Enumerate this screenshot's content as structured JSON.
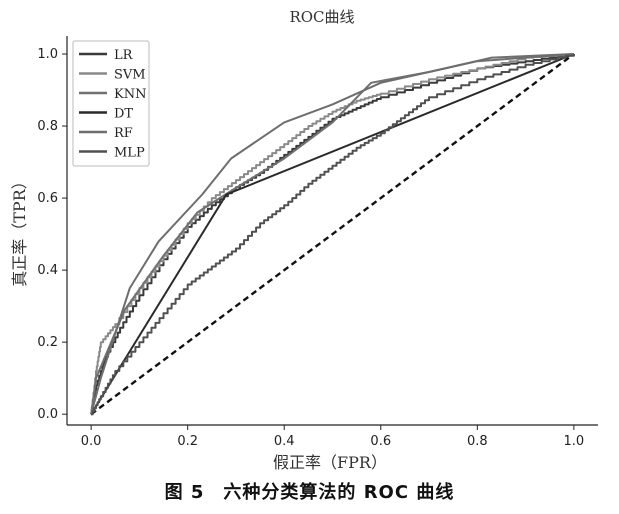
{
  "caption": "图 5　六种分类算法的 ROC 曲线",
  "chart_data": {
    "type": "line",
    "title": "ROC曲线",
    "xlabel": "假正率（FPR）",
    "ylabel": "真正率（TPR）",
    "xlim": [
      -0.05,
      1.05
    ],
    "ylim": [
      -0.03,
      1.05
    ],
    "xticks": [
      "0.0",
      "0.2",
      "0.4",
      "0.6",
      "0.8",
      "1.0"
    ],
    "yticks": [
      "0.0",
      "0.2",
      "0.4",
      "0.6",
      "0.8",
      "1.0"
    ],
    "grid": false,
    "legend_position": "top-left",
    "diagonal": {
      "style": "dashed",
      "points": [
        [
          0,
          0
        ],
        [
          1,
          1
        ]
      ]
    },
    "series": [
      {
        "name": "LR",
        "color": "#3a3a3a",
        "step": true,
        "points": [
          [
            0,
            0
          ],
          [
            0.01,
            0.08
          ],
          [
            0.03,
            0.16
          ],
          [
            0.06,
            0.24
          ],
          [
            0.1,
            0.33
          ],
          [
            0.15,
            0.43
          ],
          [
            0.2,
            0.52
          ],
          [
            0.25,
            0.58
          ],
          [
            0.3,
            0.63
          ],
          [
            0.35,
            0.67
          ],
          [
            0.4,
            0.72
          ],
          [
            0.45,
            0.77
          ],
          [
            0.5,
            0.82
          ],
          [
            0.55,
            0.85
          ],
          [
            0.6,
            0.88
          ],
          [
            0.7,
            0.92
          ],
          [
            0.8,
            0.96
          ],
          [
            0.9,
            0.98
          ],
          [
            1,
            1
          ]
        ]
      },
      {
        "name": "SVM",
        "color": "#8a8a8a",
        "step": true,
        "points": [
          [
            0,
            0
          ],
          [
            0.01,
            0.12
          ],
          [
            0.02,
            0.2
          ],
          [
            0.05,
            0.25
          ],
          [
            0.1,
            0.35
          ],
          [
            0.15,
            0.44
          ],
          [
            0.2,
            0.53
          ],
          [
            0.25,
            0.6
          ],
          [
            0.3,
            0.65
          ],
          [
            0.35,
            0.7
          ],
          [
            0.4,
            0.75
          ],
          [
            0.45,
            0.8
          ],
          [
            0.5,
            0.84
          ],
          [
            0.55,
            0.87
          ],
          [
            0.6,
            0.89
          ],
          [
            0.7,
            0.93
          ],
          [
            0.8,
            0.96
          ],
          [
            0.9,
            0.99
          ],
          [
            1,
            1
          ]
        ]
      },
      {
        "name": "KNN",
        "color": "#707070",
        "step": false,
        "points": [
          [
            0,
            0
          ],
          [
            0.01,
            0.1
          ],
          [
            0.07,
            0.29
          ],
          [
            0.15,
            0.44
          ],
          [
            0.22,
            0.56
          ],
          [
            0.29,
            0.62
          ],
          [
            0.4,
            0.71
          ],
          [
            0.5,
            0.81
          ],
          [
            0.58,
            0.92
          ],
          [
            0.7,
            0.95
          ],
          [
            0.83,
            0.99
          ],
          [
            1,
            1
          ]
        ]
      },
      {
        "name": "DT",
        "color": "#2a2a2a",
        "step": false,
        "points": [
          [
            0,
            0
          ],
          [
            0.28,
            0.61
          ],
          [
            1,
            1
          ]
        ]
      },
      {
        "name": "RF",
        "color": "#6e6e6e",
        "step": false,
        "points": [
          [
            0,
            0
          ],
          [
            0.02,
            0.1
          ],
          [
            0.08,
            0.35
          ],
          [
            0.14,
            0.48
          ],
          [
            0.23,
            0.61
          ],
          [
            0.29,
            0.71
          ],
          [
            0.4,
            0.81
          ],
          [
            0.5,
            0.86
          ],
          [
            0.6,
            0.92
          ],
          [
            0.7,
            0.95
          ],
          [
            0.8,
            0.98
          ],
          [
            1,
            1
          ]
        ]
      },
      {
        "name": "MLP",
        "color": "#505050",
        "step": true,
        "points": [
          [
            0,
            0
          ],
          [
            0.02,
            0.05
          ],
          [
            0.05,
            0.12
          ],
          [
            0.1,
            0.2
          ],
          [
            0.15,
            0.28
          ],
          [
            0.2,
            0.36
          ],
          [
            0.25,
            0.41
          ],
          [
            0.3,
            0.46
          ],
          [
            0.35,
            0.53
          ],
          [
            0.4,
            0.58
          ],
          [
            0.45,
            0.64
          ],
          [
            0.5,
            0.69
          ],
          [
            0.55,
            0.74
          ],
          [
            0.6,
            0.78
          ],
          [
            0.65,
            0.83
          ],
          [
            0.7,
            0.88
          ],
          [
            0.8,
            0.93
          ],
          [
            0.9,
            0.97
          ],
          [
            1,
            1
          ]
        ]
      }
    ]
  }
}
